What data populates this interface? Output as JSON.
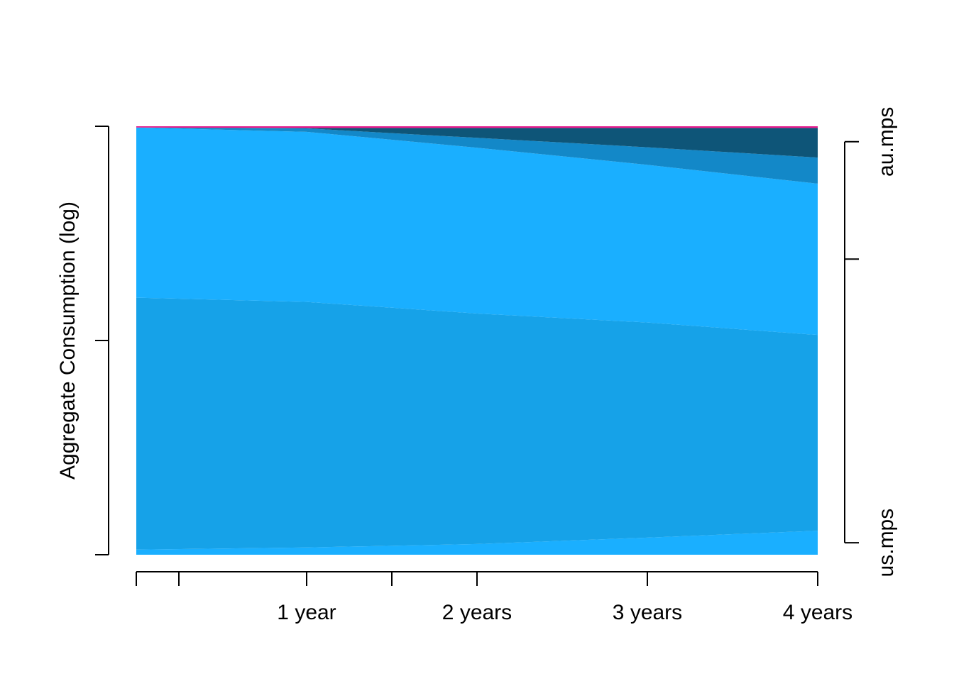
{
  "chart_data": {
    "type": "stacked-area",
    "y_label": "Aggregate Consumption (log)",
    "x": [
      0,
      1,
      2,
      3,
      4
    ],
    "xlim": [
      0,
      4
    ],
    "xticks": [
      {
        "value": 0,
        "label": null
      },
      {
        "value": 0.25,
        "label": null
      },
      {
        "value": 1,
        "label": "1 year"
      },
      {
        "value": 1.5,
        "label": null
      },
      {
        "value": 2,
        "label": "2 years"
      },
      {
        "value": 3,
        "label": "3 years"
      },
      {
        "value": 4,
        "label": "4 years"
      }
    ],
    "ylim": [
      0,
      1
    ],
    "yticks": [
      {
        "value": 0,
        "label": null
      },
      {
        "value": 0.5,
        "label": null
      },
      {
        "value": 1,
        "label": null
      }
    ],
    "y2lim": [
      0,
      1
    ],
    "y2ticks": [
      {
        "value": 0.964,
        "label": "au.mps"
      },
      {
        "value": 0.69,
        "label": null
      },
      {
        "value": 0.028,
        "label": "us.mps"
      }
    ],
    "series": [
      {
        "color": "#1aafff",
        "values": [
          0.012,
          0.017,
          0.025,
          0.04,
          0.056
        ]
      },
      {
        "color": "#16a2e8",
        "values": [
          0.588,
          0.573,
          0.538,
          0.502,
          0.457
        ]
      },
      {
        "color": "#1aafff",
        "values": [
          0.397,
          0.397,
          0.387,
          0.368,
          0.353
        ]
      },
      {
        "color": "#1388c8",
        "values": [
          0,
          0.008,
          0.023,
          0.041,
          0.061
        ]
      },
      {
        "color": "#0e5578",
        "values": [
          0,
          0.001,
          0.023,
          0.045,
          0.069
        ]
      },
      {
        "color": "#e6198c",
        "values": [
          0.003,
          0.004,
          0.004,
          0.004,
          0.004
        ]
      }
    ]
  }
}
